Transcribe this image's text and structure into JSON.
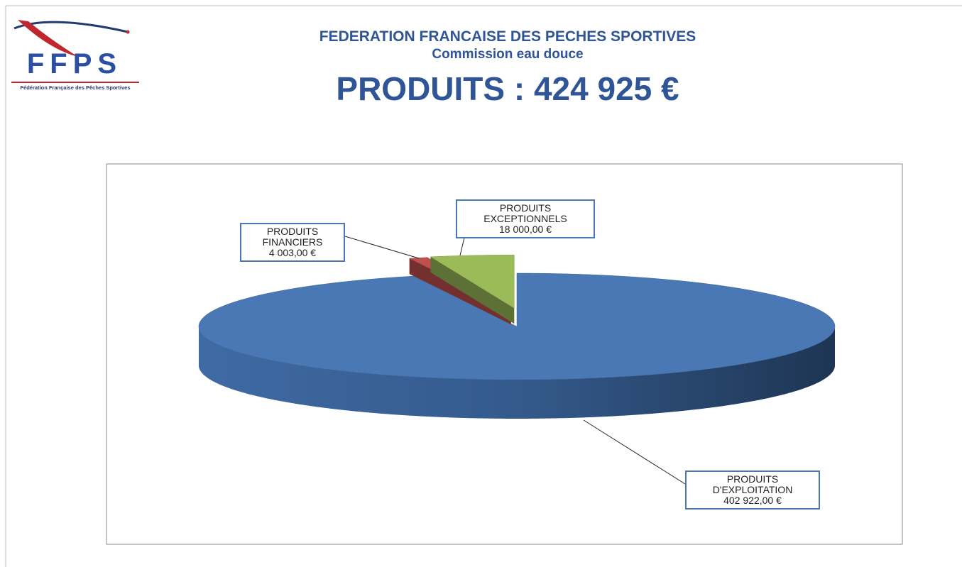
{
  "header": {
    "logo_text": "FFPS",
    "logo_caption": "Fédération Française des Pêches Sportives",
    "title": "FEDERATION FRANCAISE DES PECHES SPORTIVES",
    "subtitle": "Commission eau douce",
    "heading": "PRODUITS : 424 925 €"
  },
  "chart_data": {
    "type": "pie",
    "categories": [
      "PRODUITS D'EXPLOITATION",
      "PRODUITS FINANCIERS",
      "PRODUITS EXCEPTIONNELS"
    ],
    "values": [
      402922,
      4003,
      18000
    ],
    "value_labels": [
      "402 922,00 €",
      "4 003,00 €",
      "18 000,00 €"
    ],
    "colors": [
      "#4a78b4",
      "#c0504d",
      "#9bbb59"
    ]
  }
}
